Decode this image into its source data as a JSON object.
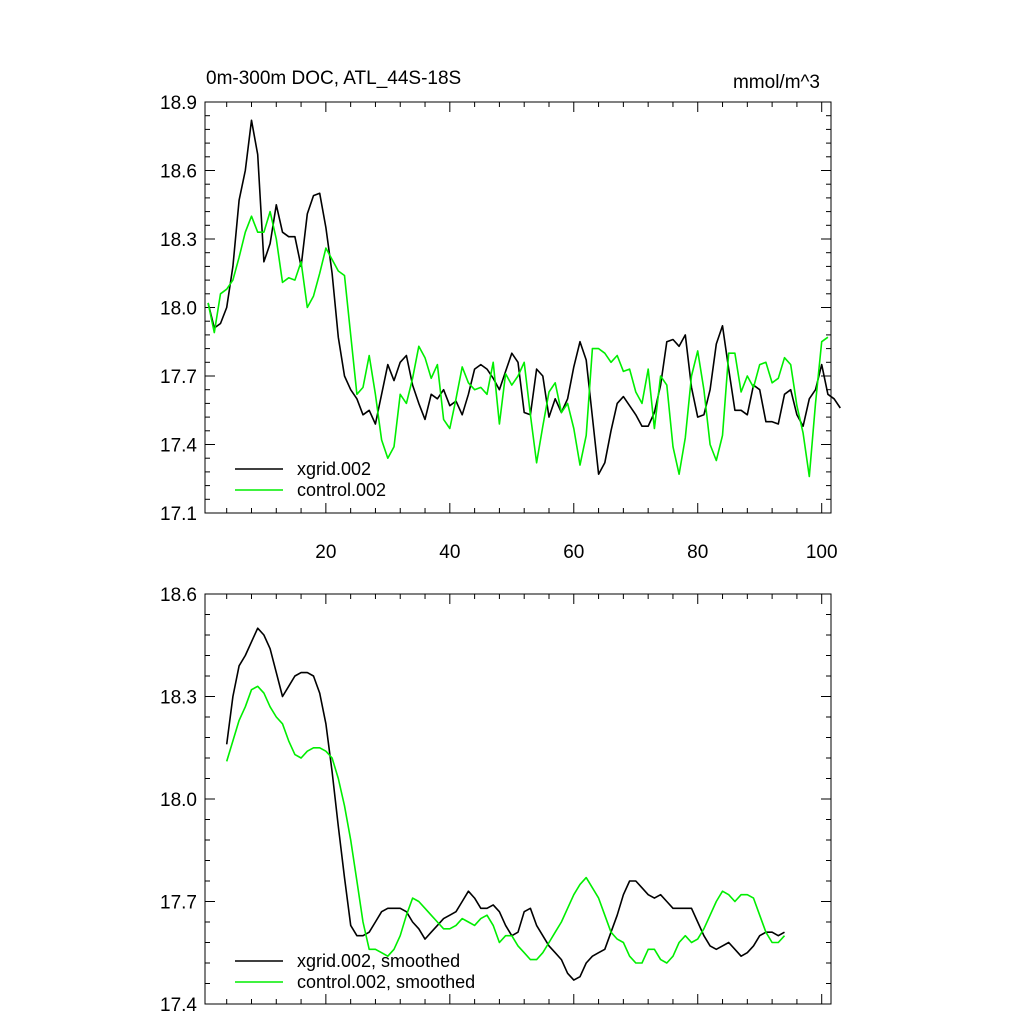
{
  "colors": {
    "xgrid": "#000000",
    "control": "#00ee00"
  },
  "chart_data": [
    {
      "type": "line",
      "title": "0m-300m DOC, ATL_44S-18S",
      "units": "mmol/m^3",
      "xlim": [
        0.5,
        101.5
      ],
      "ylim": [
        17.1,
        18.9
      ],
      "x_ticks": [
        20,
        40,
        60,
        80,
        100
      ],
      "y_ticks": [
        17.1,
        17.4,
        17.7,
        18.0,
        18.3,
        18.6,
        18.9
      ],
      "y_tick_labels": [
        "17.1",
        "17.4",
        "17.7",
        "18.0",
        "18.3",
        "18.6",
        "18.9"
      ],
      "x_start": 1,
      "series": [
        {
          "name": "xgrid.002",
          "values": [
            18.02,
            17.91,
            17.93,
            18.0,
            18.18,
            18.47,
            18.6,
            18.82,
            18.67,
            18.2,
            18.28,
            18.45,
            18.33,
            18.31,
            18.31,
            18.18,
            18.41,
            18.49,
            18.5,
            18.35,
            18.15,
            17.87,
            17.7,
            17.64,
            17.6,
            17.53,
            17.55,
            17.49,
            17.62,
            17.75,
            17.68,
            17.76,
            17.79,
            17.66,
            17.58,
            17.51,
            17.62,
            17.6,
            17.64,
            17.57,
            17.59,
            17.53,
            17.62,
            17.73,
            17.75,
            17.73,
            17.69,
            17.64,
            17.72,
            17.8,
            17.76,
            17.54,
            17.53,
            17.73,
            17.7,
            17.52,
            17.6,
            17.54,
            17.6,
            17.74,
            17.85,
            17.77,
            17.52,
            17.27,
            17.32,
            17.46,
            17.58,
            17.61,
            17.57,
            17.53,
            17.48,
            17.48,
            17.54,
            17.66,
            17.85,
            17.86,
            17.83,
            17.88,
            17.65,
            17.52,
            17.53,
            17.64,
            17.84,
            17.92,
            17.73,
            17.55,
            17.55,
            17.53,
            17.66,
            17.64,
            17.5,
            17.5,
            17.49,
            17.62,
            17.64,
            17.53,
            17.48,
            17.6,
            17.64,
            17.75,
            17.62,
            17.6,
            17.56
          ]
        },
        {
          "name": "control.002",
          "values": [
            18.02,
            17.89,
            18.06,
            18.08,
            18.12,
            18.22,
            18.33,
            18.4,
            18.33,
            18.33,
            18.42,
            18.3,
            18.11,
            18.13,
            18.12,
            18.2,
            18.0,
            18.05,
            18.15,
            18.26,
            18.21,
            18.16,
            18.14,
            17.88,
            17.62,
            17.65,
            17.79,
            17.62,
            17.42,
            17.34,
            17.39,
            17.62,
            17.58,
            17.69,
            17.83,
            17.78,
            17.69,
            17.75,
            17.51,
            17.47,
            17.6,
            17.74,
            17.67,
            17.64,
            17.65,
            17.62,
            17.76,
            17.49,
            17.71,
            17.66,
            17.7,
            17.76,
            17.53,
            17.32,
            17.48,
            17.63,
            17.67,
            17.54,
            17.58,
            17.47,
            17.31,
            17.44,
            17.82,
            17.82,
            17.8,
            17.76,
            17.79,
            17.72,
            17.73,
            17.63,
            17.58,
            17.73,
            17.47,
            17.7,
            17.66,
            17.39,
            17.27,
            17.43,
            17.7,
            17.81,
            17.64,
            17.4,
            17.33,
            17.44,
            17.8,
            17.8,
            17.63,
            17.7,
            17.65,
            17.75,
            17.76,
            17.67,
            17.69,
            17.78,
            17.75,
            17.57,
            17.45,
            17.26,
            17.58,
            17.85,
            17.87
          ]
        }
      ],
      "legend_position": "bottom-left"
    },
    {
      "type": "line",
      "title": "",
      "xlim": [
        0.5,
        101.5
      ],
      "ylim": [
        17.4,
        18.6
      ],
      "x_ticks": [
        20,
        40,
        60,
        80,
        100
      ],
      "y_ticks": [
        17.4,
        17.7,
        18.0,
        18.3,
        18.6
      ],
      "y_tick_labels": [
        "17.4",
        "17.7",
        "18.0",
        "18.3",
        "18.6"
      ],
      "x_start": 4,
      "series": [
        {
          "name": "xgrid.002, smoothed",
          "values": [
            18.16,
            18.3,
            18.39,
            18.42,
            18.46,
            18.5,
            18.48,
            18.44,
            18.37,
            18.3,
            18.33,
            18.36,
            18.37,
            18.37,
            18.36,
            18.31,
            18.22,
            18.08,
            17.92,
            17.77,
            17.63,
            17.6,
            17.6,
            17.61,
            17.64,
            17.67,
            17.68,
            17.68,
            17.68,
            17.67,
            17.64,
            17.62,
            17.59,
            17.61,
            17.63,
            17.65,
            17.66,
            17.67,
            17.7,
            17.73,
            17.71,
            17.68,
            17.68,
            17.69,
            17.67,
            17.63,
            17.6,
            17.61,
            17.67,
            17.68,
            17.63,
            17.6,
            17.57,
            17.55,
            17.53,
            17.49,
            17.47,
            17.48,
            17.52,
            17.54,
            17.55,
            17.56,
            17.61,
            17.66,
            17.72,
            17.76,
            17.76,
            17.74,
            17.72,
            17.71,
            17.72,
            17.7,
            17.68,
            17.68,
            17.68,
            17.68,
            17.64,
            17.6,
            17.57,
            17.56,
            17.57,
            17.58,
            17.56,
            17.54,
            17.55,
            17.57,
            17.6,
            17.61,
            17.61,
            17.6,
            17.61
          ]
        },
        {
          "name": "control.002, smoothed",
          "values": [
            18.11,
            18.17,
            18.23,
            18.27,
            18.32,
            18.33,
            18.31,
            18.27,
            18.24,
            18.22,
            18.17,
            18.13,
            18.12,
            18.14,
            18.15,
            18.15,
            18.14,
            18.12,
            18.06,
            17.98,
            17.88,
            17.76,
            17.64,
            17.56,
            17.56,
            17.55,
            17.54,
            17.56,
            17.6,
            17.66,
            17.71,
            17.7,
            17.68,
            17.66,
            17.64,
            17.62,
            17.62,
            17.63,
            17.65,
            17.64,
            17.63,
            17.65,
            17.66,
            17.63,
            17.58,
            17.6,
            17.6,
            17.57,
            17.55,
            17.53,
            17.53,
            17.55,
            17.58,
            17.61,
            17.64,
            17.68,
            17.72,
            17.75,
            17.77,
            17.74,
            17.71,
            17.66,
            17.61,
            17.59,
            17.58,
            17.54,
            17.52,
            17.52,
            17.56,
            17.56,
            17.53,
            17.52,
            17.54,
            17.58,
            17.6,
            17.58,
            17.59,
            17.62,
            17.66,
            17.7,
            17.73,
            17.72,
            17.7,
            17.72,
            17.72,
            17.71,
            17.66,
            17.61,
            17.58,
            17.58,
            17.6
          ]
        }
      ],
      "legend_position": "bottom-left"
    }
  ]
}
